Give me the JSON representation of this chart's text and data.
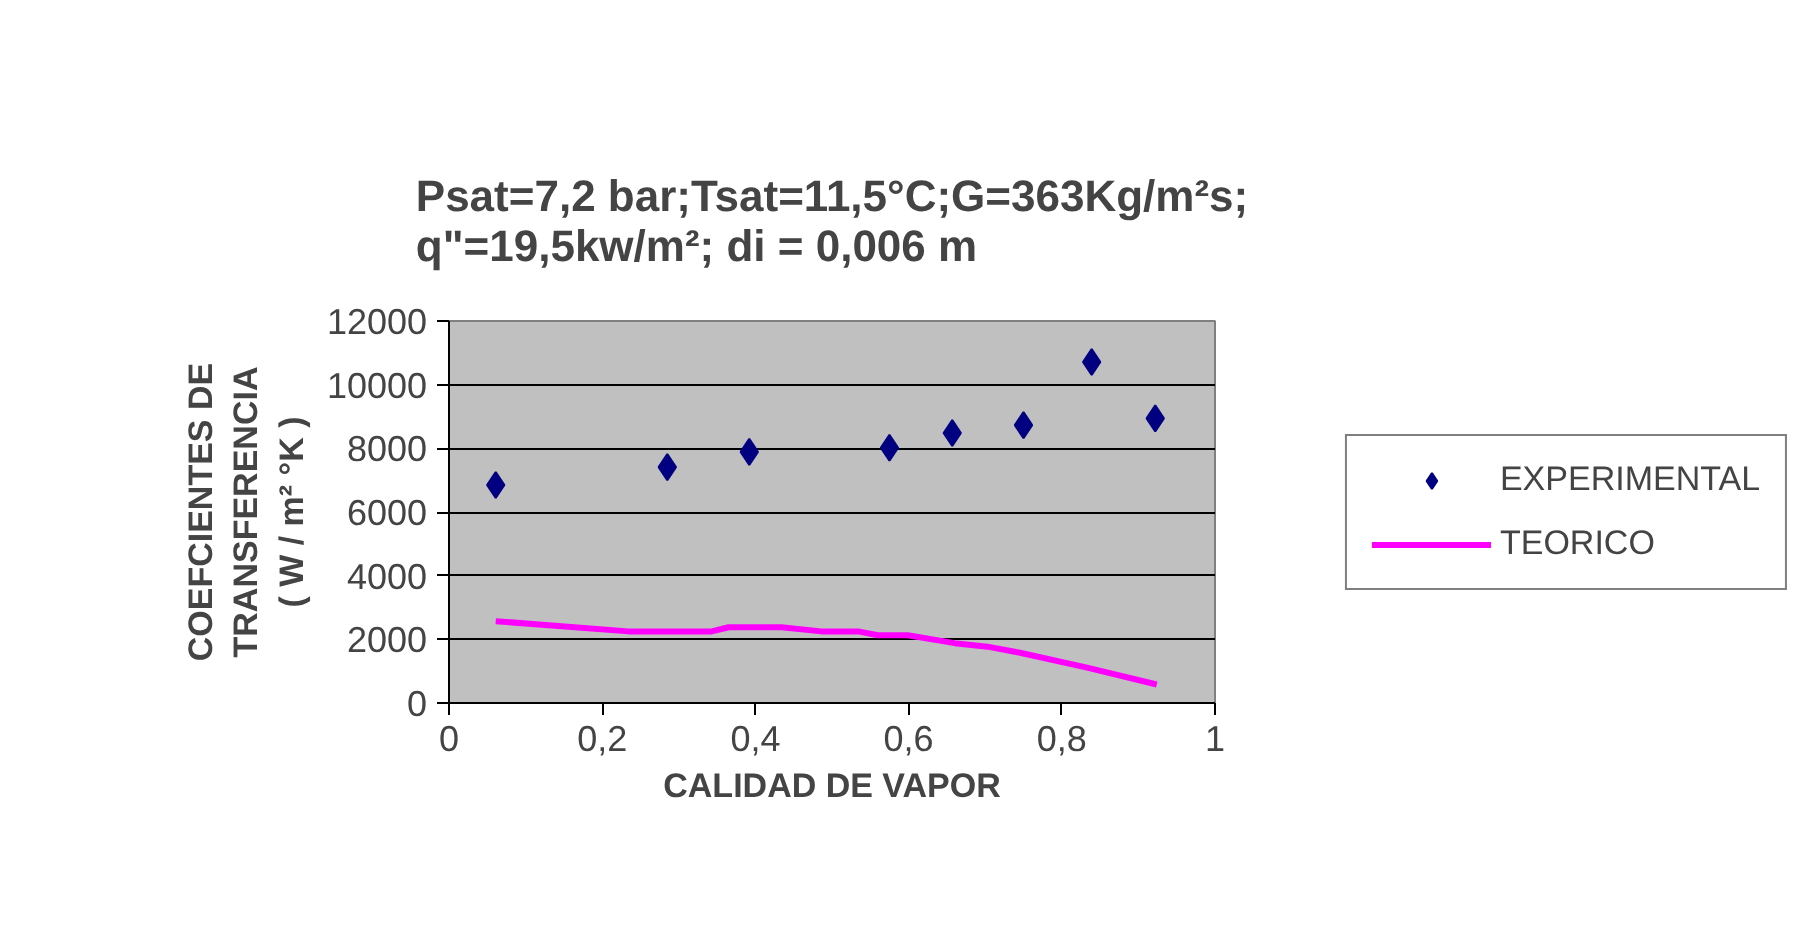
{
  "chart_data": {
    "type": "scatter",
    "title": "Psat=7,2 bar;Tsat=11,5°C;G=363Kg/m²s;\nq\"=19,5kw/m²; di = 0,006 m",
    "xlabel": "CALIDAD DE VAPOR",
    "ylabel": "COEFCIENTES DE\nTRANSFERENCIA\n( W / m² °K )",
    "xlim": [
      0,
      1
    ],
    "xticks": [
      0,
      {
        "value": 0.2,
        "label": "0,2"
      },
      {
        "value": 0.4,
        "label": "0,4"
      },
      {
        "value": 0.6,
        "label": "0,6"
      },
      {
        "value": 0.8,
        "label": "0,8"
      },
      1
    ],
    "ylim": [
      0,
      12000
    ],
    "yticks": [
      0,
      2000,
      4000,
      6000,
      8000,
      10000,
      12000
    ],
    "grid": "y",
    "legend": "right",
    "series": [
      {
        "name": "EXPERIMENTAL",
        "type": "scatter",
        "marker": "diamond",
        "color": "#000080",
        "x": [
          0.061,
          0.285,
          0.392,
          0.575,
          0.657,
          0.75,
          0.839,
          0.922
        ],
        "values": [
          6850,
          7410,
          7890,
          8020,
          8480,
          8730,
          10710,
          8940
        ]
      },
      {
        "name": "TEORICO",
        "type": "line",
        "marker": "none",
        "color": "#ff00ff",
        "x": [
          0.061,
          0.234,
          0.343,
          0.365,
          0.434,
          0.486,
          0.534,
          0.56,
          0.599,
          0.66,
          0.703,
          0.747,
          0.833,
          0.924
        ],
        "values": [
          2570,
          2250,
          2250,
          2380,
          2380,
          2250,
          2250,
          2130,
          2130,
          1880,
          1770,
          1570,
          1110,
          580
        ]
      }
    ]
  }
}
